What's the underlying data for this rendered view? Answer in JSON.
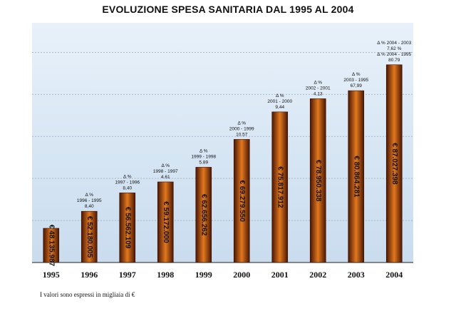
{
  "chart_data": {
    "type": "bar",
    "title": "EVOLUZIONE SPESA SANITARIA DAL 1995 AL 2004",
    "categories": [
      "1995",
      "1996",
      "1997",
      "1998",
      "1999",
      "2000",
      "2001",
      "2002",
      "2003",
      "2004"
    ],
    "values": [
      48135987,
      52180005,
      56562109,
      59172000,
      62656262,
      69279550,
      75817912,
      78950338,
      80864281,
      87027398
    ],
    "bar_labels": [
      "€ 48.135.987",
      "€ 52.180.005",
      "€ 56.562.109",
      "€ 59.172.000",
      "€ 62.656.262",
      "€ 69.279.550",
      "€ 75.817.912",
      "€ 78.950.338",
      "€ 80.864.281",
      "€ 87.027.398"
    ],
    "annotations": [
      null,
      [
        "Δ %",
        "1996 - 1995",
        "8,40"
      ],
      [
        "Δ %",
        "1997 - 1996",
        "8,40"
      ],
      [
        "Δ %",
        "1998 - 1997",
        "4.61"
      ],
      [
        "Δ %",
        "1999 - 1998",
        "5.89"
      ],
      [
        "Δ %",
        "2000 - 1999",
        "10.57"
      ],
      [
        "Δ %",
        "2001 - 2000",
        "9,44"
      ],
      [
        "Δ %",
        "2002 - 2001",
        "4.13"
      ],
      [
        "Δ %",
        "2003 - 1995",
        "67,99"
      ],
      [
        "Δ % 2004 - 2003",
        "7,62 %",
        "Δ % 2004 - 1995",
        "80.79"
      ]
    ],
    "xlabel": "",
    "ylabel": "",
    "ylim": [
      40000000,
      97000000
    ],
    "grid": true,
    "colors": {
      "bar_dark": "#5a1e06",
      "bar_light": "#e0761c",
      "plot_bg": "#dde9f5"
    }
  },
  "footnote": "I valori sono espressi in migliaia di €"
}
